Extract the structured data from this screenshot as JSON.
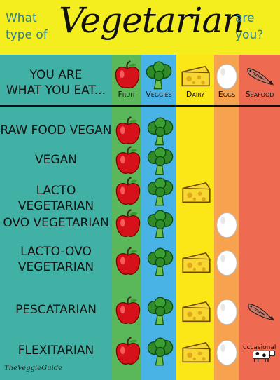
{
  "header": {
    "left_top": "What",
    "left_bottom": "type of",
    "title": "Vegetarian",
    "right_top": "are",
    "right_bottom": "you?"
  },
  "legend_label": "YOU ARE WHAT YOU EAT...",
  "legend_label_line1": "YOU ARE",
  "legend_label_line2": "WHAT YOU EAT...",
  "columns": [
    {
      "key": "fruit",
      "label": "Fruit",
      "color": "#5bb85a",
      "icon": "apple-icon"
    },
    {
      "key": "veggies",
      "label": "Veggies",
      "color": "#4ab3e6",
      "icon": "broccoli-icon"
    },
    {
      "key": "dairy",
      "label": "Dairy",
      "color": "#fbe617",
      "icon": "cheese-icon"
    },
    {
      "key": "eggs",
      "label": "Eggs",
      "color": "#f6a24e",
      "icon": "egg-icon"
    },
    {
      "key": "seafood",
      "label": "Seafood",
      "color": "#ee6b52",
      "icon": "fish-icon"
    }
  ],
  "rows": [
    {
      "name": "RAW FOOD VEGAN",
      "line1": "RAW FOOD VEGAN",
      "line2": "",
      "fruit": true,
      "veggies": true,
      "dairy": false,
      "eggs": false,
      "seafood": false
    },
    {
      "name": "VEGAN",
      "line1": "VEGAN",
      "line2": "",
      "fruit": true,
      "veggies": true,
      "dairy": false,
      "eggs": false,
      "seafood": false
    },
    {
      "name": "LACTO VEGETARIAN",
      "line1": "LACTO VEGETARIAN",
      "line2": "",
      "fruit": true,
      "veggies": true,
      "dairy": true,
      "eggs": false,
      "seafood": false
    },
    {
      "name": "OVO VEGETARIAN",
      "line1": "OVO VEGETARIAN",
      "line2": "",
      "fruit": true,
      "veggies": true,
      "dairy": false,
      "eggs": true,
      "seafood": false
    },
    {
      "name": "LACTO-OVO VEGETARIAN",
      "line1": "LACTO-OVO",
      "line2": "VEGETARIAN",
      "fruit": true,
      "veggies": true,
      "dairy": true,
      "eggs": true,
      "seafood": false
    },
    {
      "name": "PESCATARIAN",
      "line1": "PESCATARIAN",
      "line2": "",
      "fruit": true,
      "veggies": true,
      "dairy": true,
      "eggs": true,
      "seafood": true
    },
    {
      "name": "FLEXITARIAN",
      "line1": "FLEXITARIAN",
      "line2": "",
      "fruit": true,
      "veggies": true,
      "dairy": true,
      "eggs": true,
      "seafood": "occasional"
    }
  ],
  "occasional_label": "occasional",
  "footer_logo": "TheVeggieGuide"
}
